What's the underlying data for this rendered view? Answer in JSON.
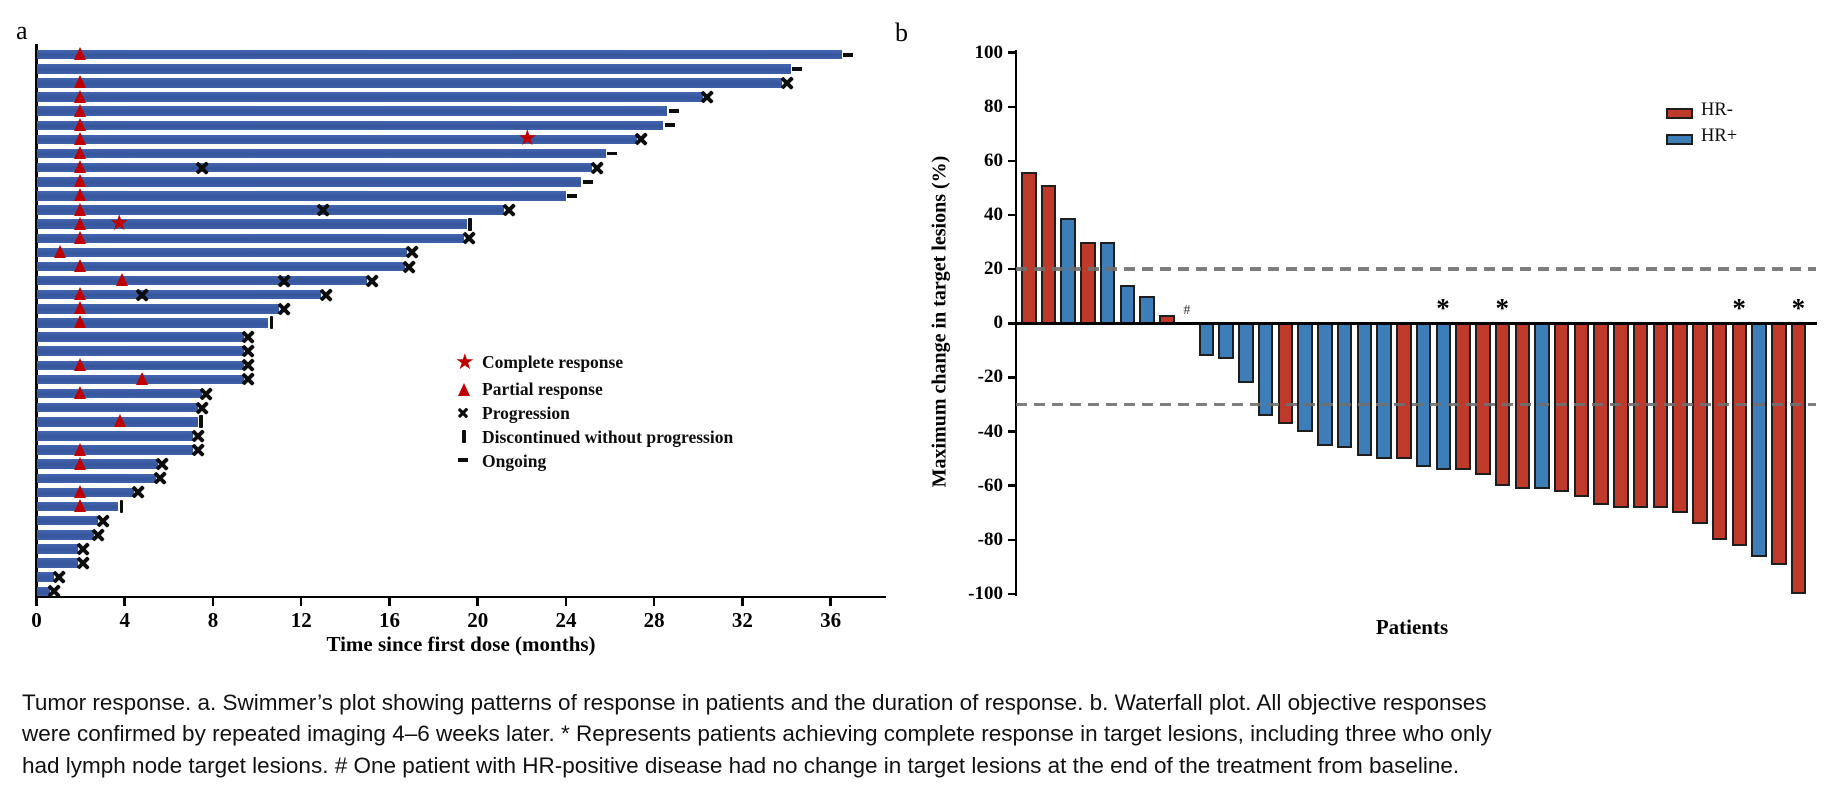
{
  "figure": {
    "panel_a_label": "a",
    "panel_b_label": "b"
  },
  "caption": "Tumor response. a. Swimmer’s plot showing patterns of response in patients and the duration of response. b. Waterfall plot. All objective responses were confirmed by repeated imaging 4–6 weeks later. * Represents patients achieving complete response in target lesions, including three who only had lymph node target lesions. # One patient with HR-positive disease had no change in target lesions at the end of the treatment from baseline.",
  "colors": {
    "swimmer_bar": "#35569d",
    "response_red": "#c00000",
    "marker_black": "#0d0d0d",
    "hr_neg": "#c03a2b",
    "hr_pos": "#3d7eb8",
    "dashed_line": "#6f6f6f"
  },
  "chart_data": [
    {
      "type": "bar",
      "panel": "a",
      "orientation": "horizontal",
      "title": "Swimmer plot of duration of treatment per patient",
      "xlabel": "Time since first dose (months)",
      "xlim": [
        0,
        38.5
      ],
      "xticks": [
        0,
        4,
        8,
        12,
        16,
        20,
        24,
        28,
        32,
        36
      ],
      "legend": [
        {
          "symbol": "star",
          "label": "Complete response"
        },
        {
          "symbol": "triangle",
          "label": "Partial response"
        },
        {
          "symbol": "x",
          "label": "Progression"
        },
        {
          "symbol": "vbar",
          "label": "Discontinued without progression"
        },
        {
          "symbol": "dash",
          "label": "Ongoing"
        }
      ],
      "rows": [
        {
          "len": 36.5,
          "tri": 2.0,
          "ongoing": true
        },
        {
          "len": 34.2,
          "ongoing": true
        },
        {
          "len": 33.8,
          "tri": 2.0,
          "x_end": true
        },
        {
          "len": 30.2,
          "tri": 2.0,
          "x_end": true
        },
        {
          "len": 28.6,
          "tri": 2.0,
          "ongoing": true
        },
        {
          "len": 28.4,
          "tri": 2.0,
          "ongoing": true
        },
        {
          "len": 27.2,
          "tri": 2.0,
          "star": 22.3,
          "x_end": true
        },
        {
          "len": 25.8,
          "tri": 2.0,
          "ongoing": true
        },
        {
          "len": 25.2,
          "tri": 2.0,
          "xs": [
            7.5
          ],
          "x_end": true
        },
        {
          "len": 24.7,
          "tri": 2.0,
          "ongoing": true
        },
        {
          "len": 24.0,
          "tri": 2.0,
          "ongoing": true
        },
        {
          "len": 21.2,
          "tri": 2.0,
          "xs": [
            13.0
          ],
          "x_end": true
        },
        {
          "len": 19.5,
          "tri": 2.0,
          "star": 3.8,
          "disc_end": true
        },
        {
          "len": 19.4,
          "tri": 2.0,
          "x_end": true
        },
        {
          "len": 16.8,
          "tri": 1.1,
          "x_end": true
        },
        {
          "len": 16.7,
          "tri": 2.0,
          "x_end": true
        },
        {
          "len": 15.0,
          "tri": 3.9,
          "xs": [
            11.2
          ],
          "x_end": true
        },
        {
          "len": 12.9,
          "tri": 2.0,
          "xs": [
            4.8
          ],
          "x_end": true
        },
        {
          "len": 11.0,
          "tri": 2.0,
          "x_end": true
        },
        {
          "len": 10.5,
          "tri": 2.0,
          "disc_end": true
        },
        {
          "len": 9.4,
          "x_end": true
        },
        {
          "len": 9.4,
          "x_end": true
        },
        {
          "len": 9.4,
          "tri": 2.0,
          "x_end": true
        },
        {
          "len": 9.4,
          "tri": 4.8,
          "x_end": true
        },
        {
          "len": 7.5,
          "tri": 2.0,
          "x_end": true
        },
        {
          "len": 7.3,
          "x_end": true
        },
        {
          "len": 7.3,
          "tri": 3.8,
          "disc_end": true
        },
        {
          "len": 7.1,
          "x_end": true
        },
        {
          "len": 7.1,
          "tri": 2.0,
          "x_end": true
        },
        {
          "len": 5.5,
          "tri": 2.0,
          "x_end": true
        },
        {
          "len": 5.4,
          "x_end": true
        },
        {
          "len": 4.4,
          "tri": 2.0,
          "x_end": true
        },
        {
          "len": 3.7,
          "tri": 2.0,
          "disc_end": true
        },
        {
          "len": 2.8,
          "x_end": true
        },
        {
          "len": 2.6,
          "x_end": true
        },
        {
          "len": 1.9,
          "x_end": true
        },
        {
          "len": 1.9,
          "x_end": true
        },
        {
          "len": 0.8,
          "x_end": true
        },
        {
          "len": 0.6,
          "x_end": true
        }
      ]
    },
    {
      "type": "bar",
      "panel": "b",
      "title": "Waterfall plot of maximum change in target lesions",
      "xlabel": "Patients",
      "ylabel": "Maximum change in target lesions (%)",
      "ylim": [
        -100,
        100
      ],
      "yticks": [
        100,
        80,
        60,
        40,
        20,
        0,
        -20,
        -40,
        -60,
        -80,
        -100
      ],
      "reference_lines": [
        20,
        -30
      ],
      "legend": [
        {
          "label": "HR-",
          "color": "#c03a2b"
        },
        {
          "label": "HR+",
          "color": "#3d7eb8"
        }
      ],
      "bars": [
        {
          "v": 56,
          "hr": "HR-"
        },
        {
          "v": 51,
          "hr": "HR-"
        },
        {
          "v": 39,
          "hr": "HR+"
        },
        {
          "v": 30,
          "hr": "HR-"
        },
        {
          "v": 30,
          "hr": "HR+"
        },
        {
          "v": 14,
          "hr": "HR+"
        },
        {
          "v": 10,
          "hr": "HR+"
        },
        {
          "v": 3,
          "hr": "HR-"
        },
        {
          "v": 0,
          "hr": "HR+",
          "hash": true
        },
        {
          "v": -12,
          "hr": "HR+"
        },
        {
          "v": -13,
          "hr": "HR+"
        },
        {
          "v": -22,
          "hr": "HR+"
        },
        {
          "v": -34,
          "hr": "HR+"
        },
        {
          "v": -37,
          "hr": "HR-"
        },
        {
          "v": -40,
          "hr": "HR+"
        },
        {
          "v": -45,
          "hr": "HR+"
        },
        {
          "v": -46,
          "hr": "HR+"
        },
        {
          "v": -49,
          "hr": "HR+"
        },
        {
          "v": -50,
          "hr": "HR+"
        },
        {
          "v": -50,
          "hr": "HR-"
        },
        {
          "v": -53,
          "hr": "HR+"
        },
        {
          "v": -54,
          "hr": "HR+",
          "star": true
        },
        {
          "v": -54,
          "hr": "HR-"
        },
        {
          "v": -56,
          "hr": "HR-"
        },
        {
          "v": -60,
          "hr": "HR-",
          "star": true
        },
        {
          "v": -61,
          "hr": "HR-"
        },
        {
          "v": -61,
          "hr": "HR+"
        },
        {
          "v": -62,
          "hr": "HR-"
        },
        {
          "v": -64,
          "hr": "HR-"
        },
        {
          "v": -67,
          "hr": "HR-"
        },
        {
          "v": -68,
          "hr": "HR-"
        },
        {
          "v": -68,
          "hr": "HR-"
        },
        {
          "v": -68,
          "hr": "HR-"
        },
        {
          "v": -70,
          "hr": "HR-"
        },
        {
          "v": -74,
          "hr": "HR-"
        },
        {
          "v": -80,
          "hr": "HR-"
        },
        {
          "v": -82,
          "hr": "HR-",
          "star": true
        },
        {
          "v": -86,
          "hr": "HR+"
        },
        {
          "v": -89,
          "hr": "HR-"
        },
        {
          "v": -100,
          "hr": "HR-",
          "star": true
        }
      ]
    }
  ]
}
